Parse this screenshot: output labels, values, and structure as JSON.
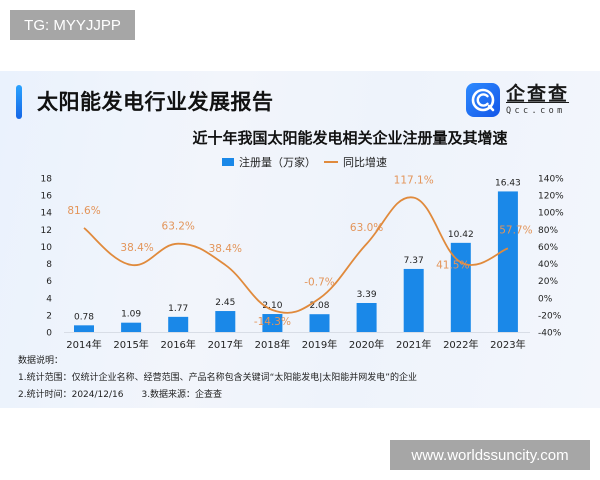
{
  "watermarks": {
    "top": "TG: MYYJJPP",
    "bottom": "www.worldssuncity.com"
  },
  "header": {
    "title": "太阳能发电行业发展报告",
    "logo": {
      "cn": "企查查",
      "en": "Qcc.com",
      "icon": "qcc-logo-icon"
    }
  },
  "legend": {
    "bar_label": "注册量（万家）",
    "line_label": "同比增速"
  },
  "notes": {
    "heading": "数据说明：",
    "line1": "1.统计范围：仅统计企业名称、经营范围、产品名称包含关键词“太阳能发电|太阳能并网发电”的企业",
    "line2a": "2.统计时间：2024/12/16",
    "line2b": "3.数据来源：企查查"
  },
  "colors": {
    "bar": "#1a88e8",
    "line": "#e08a3c",
    "line_label": "#e3955a",
    "accent": "#1566e6"
  },
  "chart_data": {
    "type": "bar+line",
    "title": "近十年我国太阳能发电相关企业注册量及其增速",
    "categories": [
      "2014年",
      "2015年",
      "2016年",
      "2017年",
      "2018年",
      "2019年",
      "2020年",
      "2021年",
      "2022年",
      "2023年"
    ],
    "series": [
      {
        "name": "注册量（万家）",
        "type": "bar",
        "axis": "left",
        "values": [
          0.78,
          1.09,
          1.77,
          2.45,
          2.1,
          2.08,
          3.39,
          7.37,
          10.42,
          16.43
        ],
        "labels": [
          "0.78",
          "1.09",
          "1.77",
          "2.45",
          "2.10",
          "2.08",
          "3.39",
          "7.37",
          "10.42",
          "16.43"
        ]
      },
      {
        "name": "同比增速",
        "type": "line",
        "axis": "right",
        "values": [
          81.6,
          38.4,
          63.2,
          38.4,
          -14.3,
          -0.7,
          63.0,
          117.1,
          41.5,
          57.7
        ],
        "labels": [
          "81.6%",
          "38.4%",
          "63.2%",
          "38.4%",
          "-14.3%",
          "-0.7%",
          "63.0%",
          "117.1%",
          "41.5%",
          "57.7%"
        ]
      }
    ],
    "left_axis": {
      "min": 0,
      "max": 18,
      "step": 2,
      "ticks": [
        "0",
        "2",
        "4",
        "6",
        "8",
        "10",
        "12",
        "14",
        "16",
        "18"
      ]
    },
    "right_axis": {
      "min": -40,
      "max": 140,
      "step": 20,
      "ticks": [
        "-40%",
        "-20%",
        "0%",
        "20%",
        "40%",
        "60%",
        "80%",
        "100%",
        "120%",
        "140%"
      ]
    },
    "grid": false,
    "legend_position": "top"
  }
}
